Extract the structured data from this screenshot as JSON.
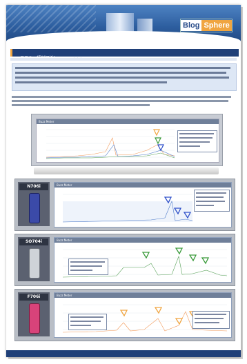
{
  "header": {
    "logo_part1": "Blog",
    "logo_part2": "Sphere"
  },
  "section": {
    "title": "◎ ロコミ・評判解析！",
    "subtitle": "— ・・・"
  },
  "charts": {
    "main_title": "Buzz Meter",
    "legend": [
      "",
      "",
      ""
    ]
  },
  "phones": [
    {
      "label": "N706i",
      "graph_title": "Buzz Meter",
      "color": "#3b4aa8",
      "pen": "#2d4fc9"
    },
    {
      "label": "SO704i",
      "graph_title": "Buzz Meter",
      "color": "#cfd3d8",
      "pen": "#3a9a3a"
    },
    {
      "label": "F706i",
      "graph_title": "Buzz Meter",
      "color": "#d8437a",
      "pen": "#f0a540"
    }
  ],
  "colors": {
    "header_blue": "#2d5e9f",
    "section_navy": "#1f3f78",
    "accent_orange": "#f0a540"
  }
}
